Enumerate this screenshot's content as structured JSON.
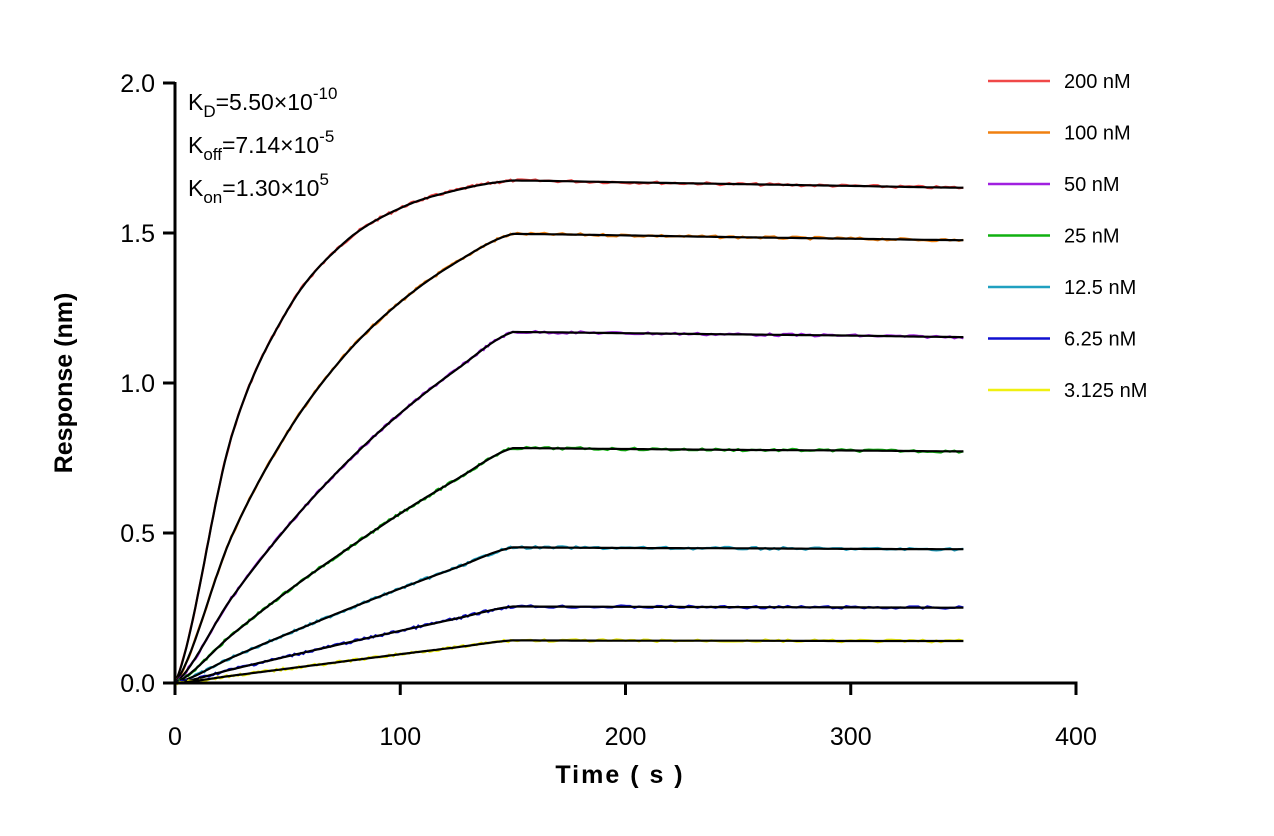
{
  "chart_data": {
    "type": "line",
    "xlabel": "Time ( s )",
    "ylabel": "Response (nm)",
    "xlim": [
      0,
      400
    ],
    "ylim": [
      0,
      2.0
    ],
    "xticks": [
      "0",
      "100",
      "200",
      "300",
      "400"
    ],
    "yticks": [
      "0.0",
      "0.5",
      "1.0",
      "1.5",
      "2.0"
    ],
    "grid": false,
    "legend_placement": "top-right",
    "annotation": [
      {
        "base": "K",
        "sub": "D",
        "text": "=5.50×10",
        "sup": "-10"
      },
      {
        "base": "K",
        "sub": "off",
        "text": "=7.14×10",
        "sup": "-5"
      },
      {
        "base": "K",
        "sub": "on",
        "text": "=1.30×10",
        "sup": "5"
      }
    ],
    "fit_color": "#000000",
    "x": [
      0,
      25,
      50,
      75,
      100,
      125,
      150,
      200,
      250,
      300,
      350
    ],
    "series": [
      {
        "name": "200 nM",
        "color": "#f04848",
        "values": [
          0,
          0.819,
          1.244,
          1.467,
          1.583,
          1.643,
          1.675,
          1.669,
          1.663,
          1.657,
          1.651
        ]
      },
      {
        "name": "100 nM",
        "color": "#f08010",
        "values": [
          0,
          0.486,
          0.836,
          1.089,
          1.27,
          1.403,
          1.497,
          1.492,
          1.486,
          1.481,
          1.476
        ]
      },
      {
        "name": "50 nM",
        "color": "#a020e0",
        "values": [
          0,
          0.282,
          0.522,
          0.726,
          0.899,
          1.045,
          1.17,
          1.166,
          1.162,
          1.158,
          1.153
        ]
      },
      {
        "name": "25 nM",
        "color": "#10b010",
        "values": [
          0,
          0.159,
          0.306,
          0.439,
          0.565,
          0.679,
          0.783,
          0.78,
          0.777,
          0.775,
          0.772
        ]
      },
      {
        "name": "12.5 nM",
        "color": "#20a0c0",
        "values": [
          0,
          0.084,
          0.164,
          0.241,
          0.315,
          0.385,
          0.452,
          0.45,
          0.449,
          0.447,
          0.446
        ]
      },
      {
        "name": "6.25 nM",
        "color": "#1010d0",
        "values": [
          0,
          0.045,
          0.089,
          0.132,
          0.174,
          0.215,
          0.255,
          0.254,
          0.253,
          0.252,
          0.251
        ]
      },
      {
        "name": "3.125 nM",
        "color": "#f0f010",
        "values": [
          0,
          0.024,
          0.048,
          0.072,
          0.096,
          0.119,
          0.142,
          0.141,
          0.141,
          0.14,
          0.14
        ]
      }
    ]
  }
}
